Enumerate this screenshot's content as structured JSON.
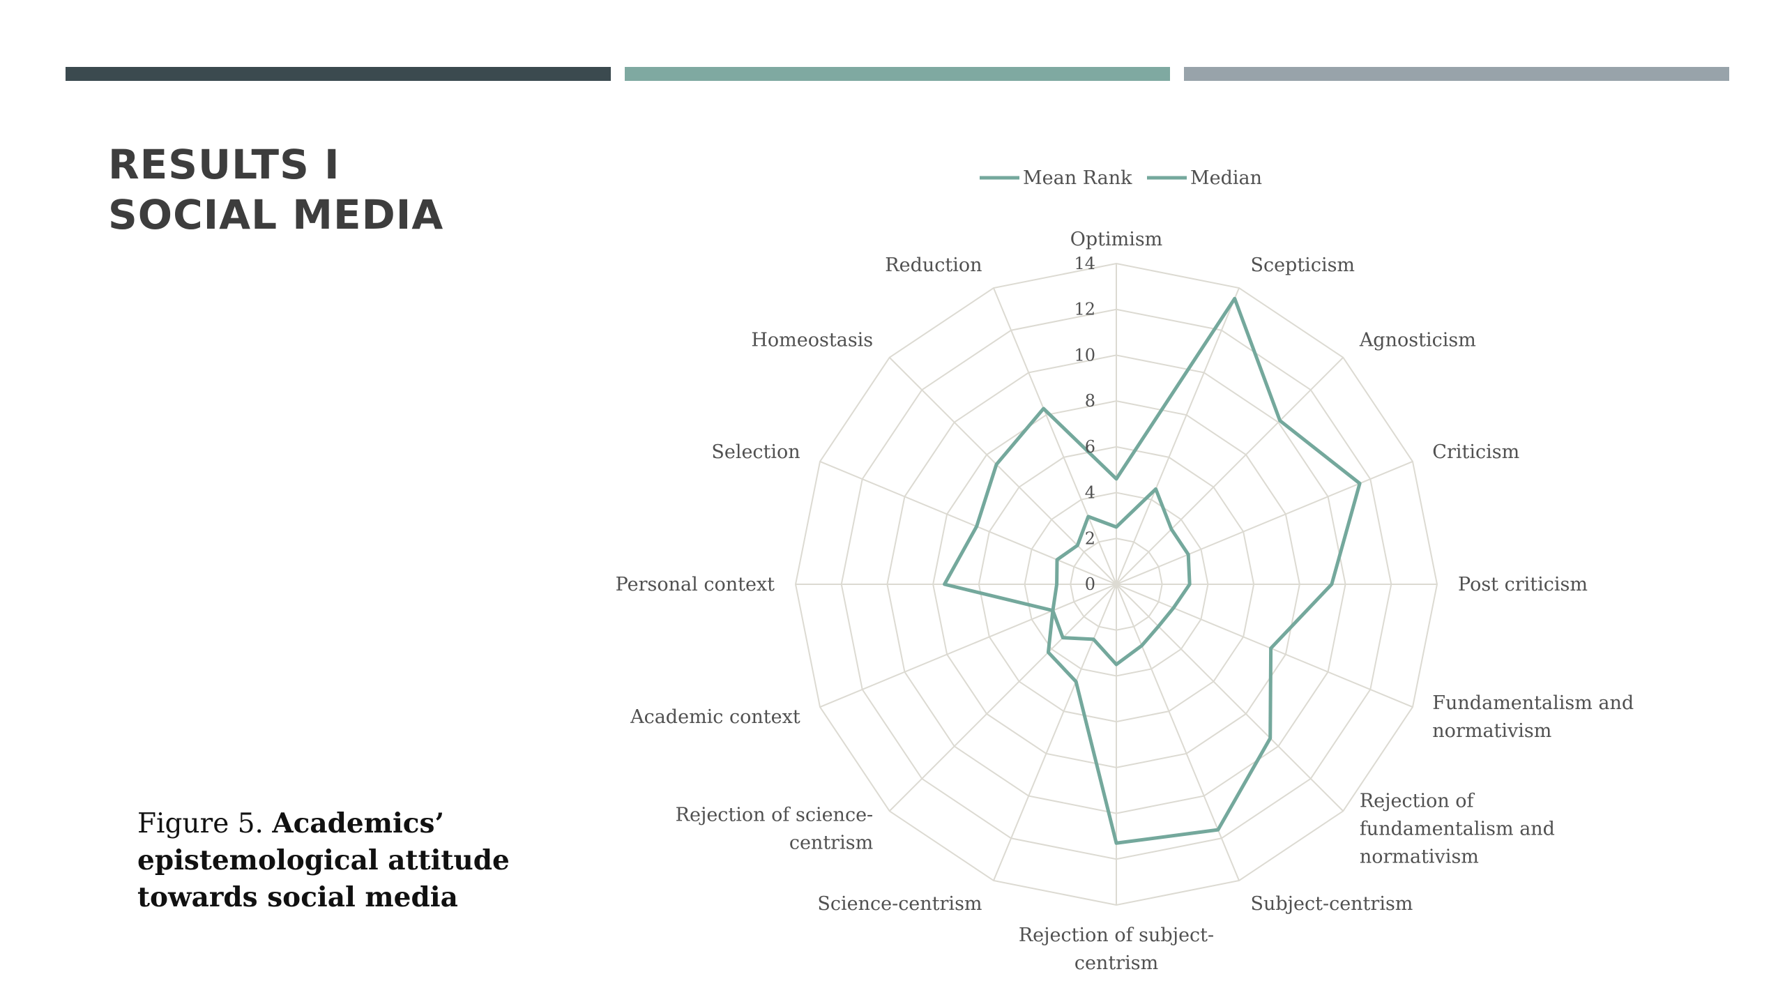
{
  "slide": {
    "title_line1": "RESULTS I",
    "title_line2": "SOCIAL MEDIA",
    "caption_prefix": "Figure 5.",
    "caption_bold": "Academics’ epistemological attitude towards social media"
  },
  "colors": {
    "bar_dark": "#3b4a4f",
    "bar_teal": "#7fa9a1",
    "bar_grey": "#98a3aa",
    "series": "#74a89c",
    "grid": "#dcdad2",
    "text": "#505050"
  },
  "chart_data": {
    "type": "radar",
    "categories": [
      "Optimism",
      "Scepticism",
      "Agnosticism",
      "Criticism",
      "Post criticism",
      "Fundamentalism and normativism",
      "Rejection of fundamentalism and normativism",
      "Subject-centrism",
      "Rejection of subject-centrism",
      "Science-centrism",
      "Rejection of science-centrism",
      "Academic context",
      "Personal context",
      "Selection",
      "Homeostasis",
      "Reduction"
    ],
    "axis_ticks": [
      "0",
      "2",
      "4",
      "6",
      "8",
      "10",
      "12",
      "14"
    ],
    "rlim": [
      0,
      14
    ],
    "series": [
      {
        "name": "Mean Rank",
        "values": [
          4.6,
          13.5,
          10.1,
          11.5,
          9.4,
          7.3,
          9.5,
          11.6,
          11.3,
          4.6,
          4.2,
          3.0,
          7.5,
          6.6,
          7.4,
          8.3
        ]
      },
      {
        "name": "Median",
        "values": [
          2.5,
          4.5,
          3.4,
          3.4,
          3.2,
          2.7,
          2.6,
          2.9,
          3.5,
          2.6,
          3.3,
          3.0,
          2.6,
          2.8,
          2.4,
          3.2
        ]
      }
    ],
    "legend": "top"
  }
}
